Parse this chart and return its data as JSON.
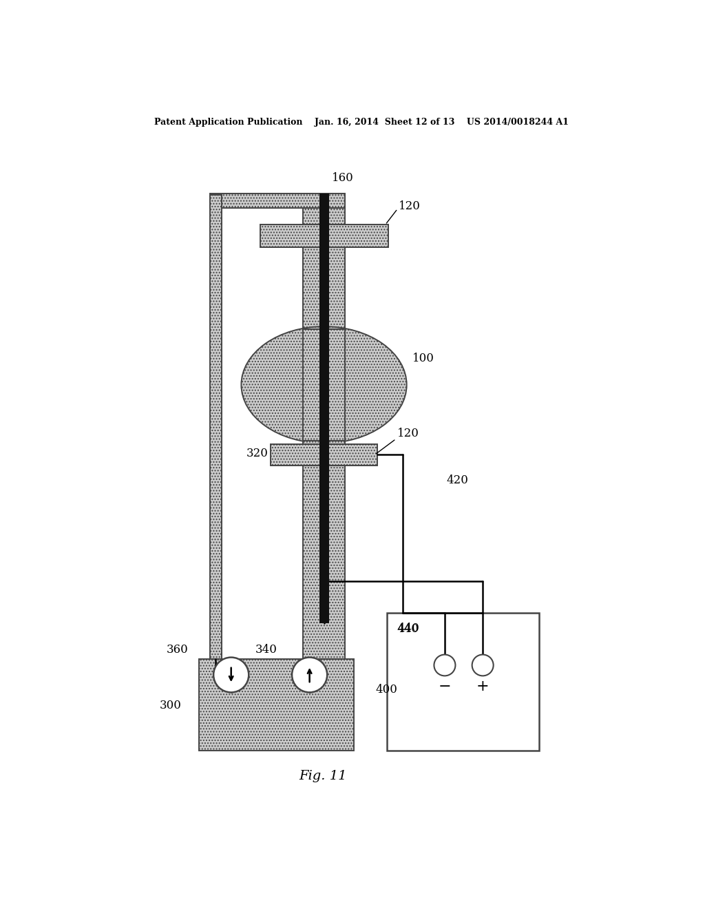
{
  "bg_color": "#ffffff",
  "hatch_fc": "#cccccc",
  "hatch_ec": "#444444",
  "line_color": "#000000",
  "header": "Patent Application Publication    Jan. 16, 2014  Sheet 12 of 13    US 2014/0018244 A1",
  "fig_label": "Fig. 11",
  "rod_color": "#111111",
  "label_fontsize": 12,
  "header_fontsize": 9,
  "fig_label_fontsize": 14,
  "hatch_pattern": "....",
  "lw_main": 1.4,
  "lw_pipe": 1.8
}
